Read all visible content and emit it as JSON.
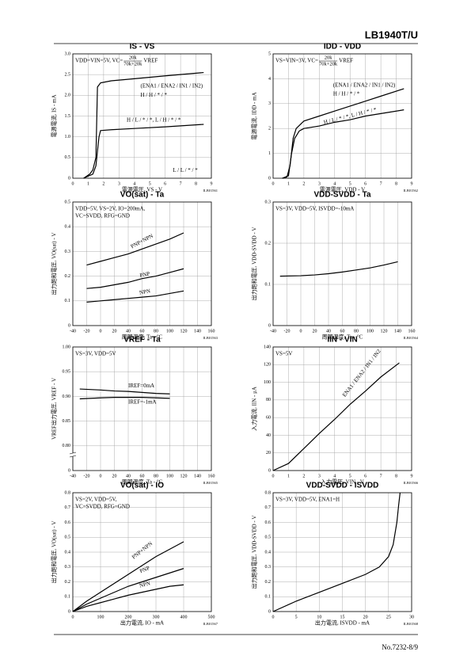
{
  "header": {
    "title": "LB1940T/U"
  },
  "footer": {
    "page": "No.7232-8/9"
  },
  "chart_data": [
    {
      "type": "line",
      "title": "IS - VS",
      "xlim": [
        0,
        9
      ],
      "xticks": [
        0,
        1,
        2,
        3,
        4,
        5,
        6,
        7,
        8,
        9
      ],
      "ylim": [
        0,
        3
      ],
      "yticks": [
        0,
        0.5,
        {
          "value": 1,
          "label": "1.0"
        },
        1.5,
        {
          "value": 2,
          "label": "2.0"
        },
        2.5,
        {
          "value": 3,
          "label": "3.0"
        }
      ],
      "x_label": "電源電圧, VS - V",
      "y_label": "電源電流, IS - mA",
      "code": "ILB01561",
      "grid": true,
      "conditions": [
        "VDD=VIN=5V, VC="
      ],
      "fraction": {
        "numerator": "20k",
        "denominator": "70k+20k",
        "after": "VREF"
      },
      "annotations": [
        "(ENA1 / ENA2 / IN1 / IN2)",
        "H / H / * / *",
        "H / L / * / *, L / H / * / *",
        "L / L / * / *"
      ],
      "series": [
        {
          "color": "#000",
          "x": [
            0.7,
            0.9,
            1.1,
            1.3,
            1.5,
            1.6,
            1.8,
            2.5,
            4,
            6,
            8.5
          ],
          "values": [
            0,
            0.05,
            0.1,
            0.2,
            0.5,
            2.2,
            2.3,
            2.35,
            2.4,
            2.47,
            2.55
          ]
        },
        {
          "color": "#000",
          "x": [
            0.7,
            1,
            1.3,
            1.5,
            1.7,
            1.8,
            2.5,
            4,
            6,
            8.5
          ],
          "values": [
            0,
            0.05,
            0.1,
            0.3,
            1,
            1.15,
            1.17,
            1.2,
            1.24,
            1.3
          ]
        }
      ]
    },
    {
      "type": "line",
      "title": "IDD - VDD",
      "xlim": [
        0,
        9
      ],
      "xticks": [
        0,
        1,
        2,
        3,
        4,
        5,
        6,
        7,
        8,
        9
      ],
      "ylim": [
        0,
        5
      ],
      "yticks": [
        0,
        1,
        2,
        3,
        4,
        5
      ],
      "x_label": "電源電圧, VDD - V",
      "y_label": "電源電流, IDD - mA",
      "code": "ILB01562",
      "grid": true,
      "conditions": [
        "VS=VIN=3V, VC="
      ],
      "fraction": {
        "numerator": "20k",
        "denominator": "70k+20k",
        "after": "VREF"
      },
      "annotations": [
        "(ENA1 / ENA2 / IN1 / IN2)",
        "H / H / * / *",
        "H / L / * / *, L / H / * / *"
      ],
      "series": [
        {
          "color": "#000",
          "x": [
            0.6,
            0.9,
            1.1,
            1.3,
            1.5,
            2,
            3,
            4,
            5,
            6,
            7,
            8.5
          ],
          "values": [
            0,
            0.05,
            0.5,
            1.6,
            2,
            2.3,
            2.5,
            2.7,
            2.9,
            3.1,
            3.3,
            3.6
          ]
        },
        {
          "color": "#000",
          "x": [
            0.6,
            1,
            1.2,
            1.4,
            1.7,
            2,
            3,
            4,
            5,
            6,
            7,
            8.5
          ],
          "values": [
            0,
            0.1,
            1,
            1.6,
            1.9,
            2,
            2.1,
            2.25,
            2.35,
            2.5,
            2.6,
            2.75
          ]
        }
      ]
    },
    {
      "type": "line",
      "title": "VO(sat) - Ta",
      "xlim": [
        -40,
        160
      ],
      "xticks": [
        -40,
        -20,
        0,
        20,
        40,
        60,
        80,
        100,
        120,
        140,
        160
      ],
      "ylim": [
        0,
        0.5
      ],
      "yticks": [
        0,
        0.1,
        0.2,
        0.3,
        0.4,
        0.5
      ],
      "x_label": "周囲温度, Ta - °C",
      "y_label": "出力飽和電圧, VO(sat) - V",
      "code": "ILB01563",
      "grid": true,
      "conditions": [
        "VDD=5V, VS=2V, IO=200mA,",
        "VC=SVDD, RFG=GND"
      ],
      "annotations": [],
      "series": [
        {
          "name": "PNP+NPN",
          "color": "#000",
          "x": [
            -20,
            0,
            20,
            40,
            60,
            80,
            100,
            120
          ],
          "values": [
            0.245,
            0.26,
            0.275,
            0.29,
            0.31,
            0.33,
            0.35,
            0.375
          ]
        },
        {
          "name": "PNP",
          "color": "#000",
          "x": [
            -20,
            0,
            20,
            40,
            60,
            80,
            100,
            120
          ],
          "values": [
            0.15,
            0.155,
            0.165,
            0.175,
            0.19,
            0.2,
            0.215,
            0.23
          ]
        },
        {
          "name": "NPN",
          "color": "#000",
          "x": [
            -20,
            0,
            20,
            40,
            60,
            80,
            100,
            120
          ],
          "values": [
            0.095,
            0.1,
            0.105,
            0.11,
            0.115,
            0.12,
            0.13,
            0.14
          ]
        }
      ]
    },
    {
      "type": "line",
      "title": "VDD-SVDD - Ta",
      "xlim": [
        -40,
        160
      ],
      "xticks": [
        -40,
        -20,
        0,
        20,
        40,
        60,
        80,
        100,
        120,
        140,
        160
      ],
      "ylim": [
        0,
        0.3
      ],
      "yticks": [
        0,
        0.1,
        0.2,
        0.3
      ],
      "x_label": "周囲温度, Ta - °C",
      "y_label": "出力飽和電圧, VDD-SVDD - V",
      "code": "ILB01564",
      "grid": true,
      "conditions": [
        "VS=3V, VDD=5V, ISVDD=-10mA"
      ],
      "annotations": [],
      "series": [
        {
          "color": "#000",
          "x": [
            -30,
            0,
            20,
            40,
            60,
            80,
            100,
            120,
            140
          ],
          "values": [
            0.12,
            0.121,
            0.123,
            0.126,
            0.13,
            0.135,
            0.14,
            0.147,
            0.155
          ]
        }
      ]
    },
    {
      "type": "line",
      "title": "VREF - Ta",
      "xlim": [
        -40,
        160
      ],
      "xticks": [
        -40,
        -20,
        0,
        20,
        40,
        60,
        80,
        100,
        120,
        140,
        160
      ],
      "ylim": [
        0.75,
        1
      ],
      "yticks": [
        {
          "value": 0.8,
          "label": "0.80"
        },
        0.85,
        {
          "value": 0.9,
          "label": "0.90"
        },
        0.95,
        {
          "value": 1,
          "label": "1.00"
        }
      ],
      "axis_break_label": "0",
      "x_label": "周囲温度, Ta - °C",
      "y_label": "VREF出力電圧, VREF - V",
      "code": "ILB01565",
      "grid": true,
      "conditions": [
        "VS=3V, VDD=5V"
      ],
      "annotations": [],
      "series": [
        {
          "name": "IREF=0mA",
          "color": "#000",
          "x": [
            -30,
            0,
            20,
            40,
            60,
            80,
            100
          ],
          "values": [
            0.915,
            0.913,
            0.911,
            0.91,
            0.908,
            0.906,
            0.905
          ]
        },
        {
          "name": "IREF=-1mA",
          "color": "#000",
          "x": [
            -30,
            0,
            20,
            40,
            60,
            80,
            100
          ],
          "values": [
            0.895,
            0.897,
            0.898,
            0.898,
            0.898,
            0.897,
            0.896
          ]
        }
      ]
    },
    {
      "type": "line",
      "title": "IIN - VIN",
      "xlim": [
        0,
        9
      ],
      "xticks": [
        0,
        1,
        2,
        3,
        4,
        5,
        6,
        7,
        8,
        9
      ],
      "ylim": [
        0,
        140
      ],
      "yticks": [
        0,
        20,
        40,
        60,
        80,
        100,
        120,
        140
      ],
      "x_label": "入力電圧, VIN - V",
      "y_label": "入力電流, IIN - μA",
      "code": "ILB01566",
      "grid": true,
      "conditions": [
        "VS=5V"
      ],
      "annotations": [
        "ENA1 / ENA2 / IN1 / IN2"
      ],
      "series": [
        {
          "color": "#000",
          "x": [
            0,
            1,
            2,
            3,
            4,
            5,
            6,
            7,
            8.2
          ],
          "values": [
            0,
            8,
            25,
            42,
            58,
            75,
            90,
            106,
            122
          ]
        }
      ]
    },
    {
      "type": "line",
      "title": "VO(sat) - IO",
      "xlim": [
        0,
        500
      ],
      "xticks": [
        0,
        100,
        200,
        300,
        400,
        500
      ],
      "ylim": [
        0,
        0.8
      ],
      "yticks": [
        0,
        0.1,
        0.2,
        0.3,
        0.4,
        0.5,
        0.6,
        0.7,
        0.8
      ],
      "x_label": "出力電流, IO - mA",
      "y_label": "出力飽和電圧, VO(sat) - V",
      "code": "ILB01567",
      "grid": true,
      "conditions": [
        "VS=2V, VDD=5V,",
        "VC=SVDD, RFG=GND"
      ],
      "annotations": [],
      "series": [
        {
          "name": "PNP+NPN",
          "color": "#000",
          "x": [
            0,
            50,
            100,
            150,
            200,
            250,
            300,
            350,
            400
          ],
          "values": [
            0,
            0.07,
            0.13,
            0.19,
            0.25,
            0.31,
            0.37,
            0.42,
            0.47
          ]
        },
        {
          "name": "PNP",
          "color": "#000",
          "x": [
            0,
            50,
            100,
            150,
            200,
            250,
            300,
            350,
            400
          ],
          "values": [
            0,
            0.05,
            0.09,
            0.13,
            0.17,
            0.2,
            0.23,
            0.26,
            0.29
          ]
        },
        {
          "name": "NPN",
          "color": "#000",
          "x": [
            0,
            50,
            100,
            150,
            200,
            250,
            300,
            350,
            400
          ],
          "values": [
            0,
            0.035,
            0.06,
            0.085,
            0.11,
            0.13,
            0.15,
            0.17,
            0.18
          ]
        }
      ]
    },
    {
      "type": "line",
      "title": "VDD-SVDD - ISVDD",
      "xlim": [
        0,
        30
      ],
      "xticks": [
        0,
        5,
        10,
        15,
        20,
        25,
        30
      ],
      "ylim": [
        0,
        0.8
      ],
      "yticks": [
        0,
        0.1,
        0.2,
        0.3,
        0.4,
        0.5,
        0.6,
        0.7,
        0.8
      ],
      "x_label": "出力電流, ISVDD - mA",
      "y_label": "出力飽和電圧, VDD-SVDD - V",
      "code": "ILB01568",
      "grid": true,
      "conditions": [
        "VS=3V, VDD=5V, ENA1=H"
      ],
      "annotations": [],
      "series": [
        {
          "color": "#000",
          "x": [
            0,
            5,
            10,
            15,
            20,
            23,
            25,
            26,
            26.8,
            27.2,
            27.5
          ],
          "values": [
            0,
            0.07,
            0.13,
            0.19,
            0.25,
            0.3,
            0.37,
            0.45,
            0.6,
            0.72,
            0.8
          ]
        }
      ]
    }
  ]
}
